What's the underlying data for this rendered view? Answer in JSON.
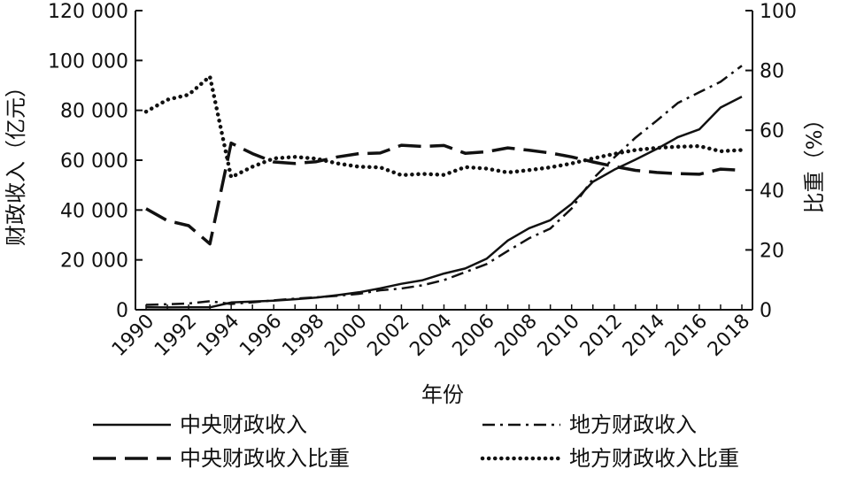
{
  "chart_data": {
    "type": "line",
    "x": [
      1990,
      1991,
      1992,
      1993,
      1994,
      1995,
      1996,
      1997,
      1998,
      1999,
      2000,
      2001,
      2002,
      2003,
      2004,
      2005,
      2006,
      2007,
      2008,
      2009,
      2010,
      2011,
      2012,
      2013,
      2014,
      2015,
      2016,
      2017,
      2018
    ],
    "xlabel": "年份",
    "xticks": [
      "1990",
      "1992",
      "1994",
      "1996",
      "1998",
      "2000",
      "2002",
      "2004",
      "2006",
      "2008",
      "2010",
      "2012",
      "2014",
      "2016",
      "2018"
    ],
    "ylabel_left": "财政收入（亿元）",
    "ylim_left": [
      0,
      120000
    ],
    "yticks_left": [
      "0",
      "20 000",
      "40 000",
      "60 000",
      "80 000",
      "100 000",
      "120 000"
    ],
    "ylabel_right": "比重（%）",
    "ylim_right": [
      0,
      100
    ],
    "yticks_right": [
      "0",
      "20",
      "40",
      "60",
      "80",
      "100"
    ],
    "grid": false,
    "legend_position": "bottom",
    "series": [
      {
        "name": "中央财政收入",
        "axis": "left",
        "style": "solid",
        "values": [
          992,
          938,
          980,
          958,
          2907,
          3257,
          3661,
          4227,
          4892,
          5849,
          6989,
          8583,
          10389,
          11865,
          14503,
          16549,
          20457,
          27749,
          32681,
          35916,
          42470,
          51328,
          56175,
          60198,
          64494,
          69267,
          72366,
          81123,
          85456
        ]
      },
      {
        "name": "地方财政收入",
        "axis": "left",
        "style": "dashdot",
        "values": [
          1945,
          2211,
          2504,
          3391,
          2312,
          2986,
          3747,
          4424,
          4984,
          5595,
          6406,
          7803,
          8515,
          9850,
          11893,
          15101,
          18304,
          23573,
          28650,
          32603,
          40613,
          52547,
          61078,
          69011,
          75877,
          83002,
          87239,
          91469,
          97903
        ]
      },
      {
        "name": "中央财政收入比重",
        "axis": "right",
        "style": "dashed",
        "values": [
          33.8,
          29.8,
          28.1,
          22.0,
          55.7,
          52.2,
          49.4,
          48.9,
          49.5,
          51.1,
          52.2,
          52.4,
          55.0,
          54.6,
          54.9,
          52.3,
          52.8,
          54.1,
          53.3,
          52.4,
          51.1,
          49.4,
          47.9,
          46.6,
          45.9,
          45.5,
          45.3,
          47.0,
          46.6
        ]
      },
      {
        "name": "地方财政收入比重",
        "axis": "right",
        "style": "dotted",
        "values": [
          66.2,
          70.2,
          71.9,
          78.0,
          44.3,
          47.8,
          50.6,
          51.1,
          50.5,
          48.9,
          47.8,
          47.6,
          45.0,
          45.4,
          45.1,
          47.7,
          47.2,
          45.9,
          46.7,
          47.6,
          48.9,
          50.6,
          52.1,
          53.4,
          54.1,
          54.5,
          54.7,
          53.0,
          53.4
        ]
      }
    ]
  }
}
